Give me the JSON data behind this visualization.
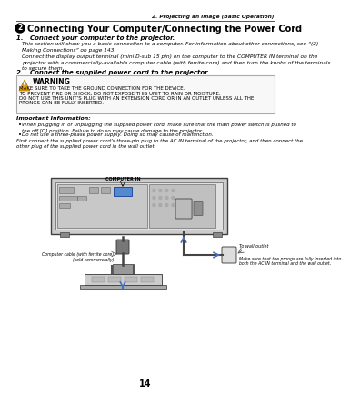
{
  "page_number": "14",
  "header_right": "2. Projecting an Image (Basic Operation)",
  "section_number": "2",
  "section_title": "Connecting Your Computer/Connecting the Power Cord",
  "step1_title": "1.   Connect your computer to the projector.",
  "step1_body1": "This section will show you a basic connection to a computer. For information about other connections, see “(2)\nMaking Connections” on page 143.",
  "step1_body2": "Connect the display output terminal (mini D-sub 15 pin) on the computer to the COMPUTER IN terminal on the\nprojector with a commercially-available computer cable (with ferrite core) and then turn the knobs of the terminals\nto secure them.",
  "step2_title": "2.   Connect the supplied power cord to the projector.",
  "warning_title": "WARNING",
  "warning_line1": "MAKE SURE TO TAKE THE GROUND CONNECTION FOR THE DEVICE.",
  "warning_line2": "TO PREVENT FIRE OR SHOCK, DO NOT EXPOSE THIS UNIT TO RAIN OR MOISTURE.",
  "warning_line3": "DO NOT USE THIS UNIT’S PLUG WITH AN EXTENSION CORD OR IN AN OUTLET UNLESS ALL THE",
  "warning_line4": "PRONGS CAN BE FULLY INSERTED.",
  "important_title": "Important Information:",
  "bullet1_text": "When plugging in or unplugging the supplied power cord, make sure that the main power switch is pushed to\nthe off [O] position. Failure to do so may cause damage to the projector.",
  "bullet2_text": "Do not use a three-phase power supply. Doing so may cause of malfunction.",
  "para_last1": "First connect the supplied power cord’s three-pin plug to the AC IN terminal of the projector, and then connect the",
  "para_last2": "other plug of the supplied power cord in the wall outlet.",
  "label_computer_in": "COMPUTER IN",
  "label_to_wall": "To wall outlet",
  "label_cable1": "Computer cable (with ferrite core)",
  "label_cable2": "(sold commercially)",
  "label_prongs1": "Make sure that the prongs are fully inserted into",
  "label_prongs2": "both the AC IN terminal and the wall outlet.",
  "bg_color": "#ffffff",
  "header_line_color": "#2060a0",
  "text_color": "#000000",
  "arrow_color": "#4472c4",
  "proj_fill": "#d8d8d8",
  "proj_stroke": "#555555",
  "warn_fill": "#f8f8f8",
  "warn_stroke": "#aaaaaa",
  "warn_icon_fill": "#e8a000",
  "blue_fill": "#5588cc"
}
